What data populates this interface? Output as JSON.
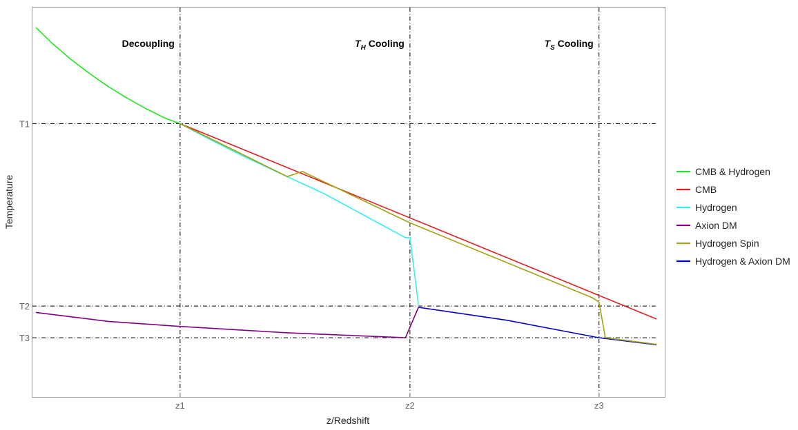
{
  "chart_data": {
    "type": "line",
    "xlabel": "z/Redshift",
    "ylabel": "Temperature",
    "xlim": [
      0,
      100
    ],
    "ylim": [
      0,
      100
    ],
    "x_ticks": [
      {
        "label": "z1",
        "value": 23.35
      },
      {
        "label": "z2",
        "value": 59.7
      },
      {
        "label": "z3",
        "value": 89.6
      }
    ],
    "y_ticks": [
      {
        "label": "T1",
        "value": 70.2
      },
      {
        "label": "T2",
        "value": 23.35
      },
      {
        "label": "T3",
        "value": 15.2
      }
    ],
    "annotations": [
      {
        "main": "Decoupling",
        "sub": "",
        "tail": "",
        "x": 23.35
      },
      {
        "main": "T",
        "sub": "H",
        "tail": " Cooling",
        "x": 59.7
      },
      {
        "main": "T",
        "sub": "S",
        "tail": " Cooling",
        "x": 89.6
      }
    ],
    "series": [
      {
        "name": "CMB & Hydrogen",
        "color": "#22e622",
        "x": [
          0.55,
          3.0,
          6.0,
          9.0,
          12.0,
          15.0,
          18.0,
          21.0,
          23.35
        ],
        "y": [
          94.9,
          91.0,
          86.8,
          83.1,
          79.7,
          76.7,
          74.0,
          71.6,
          70.2
        ]
      },
      {
        "name": "CMB",
        "color": "#e02020",
        "x": [
          23.35,
          98.7
        ],
        "y": [
          70.2,
          20.0
        ]
      },
      {
        "name": "Hydrogen",
        "color": "#33f0f0",
        "x": [
          23.35,
          28.0,
          33.0,
          40.0,
          46.0,
          59.0,
          59.7,
          61.05
        ],
        "y": [
          70.2,
          66.2,
          62.1,
          56.8,
          52.3,
          40.9,
          40.9,
          23.7
        ]
      },
      {
        "name": "Axion DM",
        "color": "#800080",
        "x": [
          0.55,
          12.0,
          23.35,
          40.0,
          59.0,
          61.05
        ],
        "y": [
          21.7,
          19.4,
          18.1,
          16.5,
          15.2,
          23.0
        ]
      },
      {
        "name": "Hydrogen Spin",
        "color": "#a0a010",
        "x": [
          23.35,
          40.3,
          42.7,
          59.7,
          88.5,
          89.6,
          90.6,
          98.7
        ],
        "y": [
          70.2,
          56.6,
          57.9,
          44.7,
          25.5,
          24.4,
          15.2,
          13.5
        ]
      },
      {
        "name": "Hydrogen & Axion DM",
        "color": "#0000cc",
        "x": [
          61.05,
          75.0,
          89.6,
          98.7
        ],
        "y": [
          23.0,
          19.7,
          15.2,
          13.4
        ]
      }
    ],
    "grid": false,
    "reference_lines": "dash-dot at z1, z2, z3 and T1, T2, T3",
    "legend_position": "right"
  }
}
